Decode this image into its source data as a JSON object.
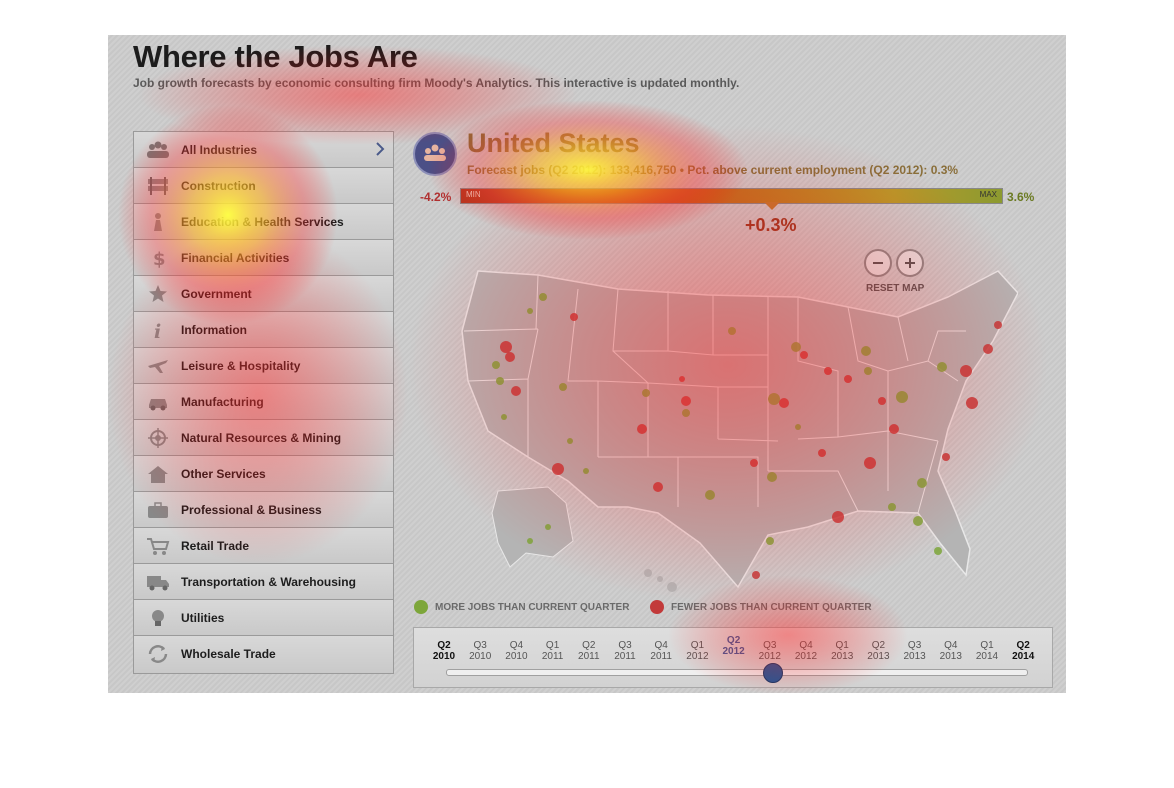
{
  "page": {
    "title": "Where the Jobs Are",
    "subtitle": "Job growth forecasts by economic consulting firm Moody's Analytics. This interactive is updated monthly."
  },
  "industries": [
    {
      "label": "All Industries",
      "icon": "people-icon"
    },
    {
      "label": "Construction",
      "icon": "barrier-icon"
    },
    {
      "label": "Education & Health Services",
      "icon": "education-icon"
    },
    {
      "label": "Financial Activities",
      "icon": "dollar-icon"
    },
    {
      "label": "Government",
      "icon": "star-seal-icon"
    },
    {
      "label": "Information",
      "icon": "info-icon"
    },
    {
      "label": "Leisure & Hospitality",
      "icon": "airplane-icon"
    },
    {
      "label": "Manufacturing",
      "icon": "car-icon"
    },
    {
      "label": "Natural Resources & Mining",
      "icon": "target-icon"
    },
    {
      "label": "Other Services",
      "icon": "house-icon"
    },
    {
      "label": "Professional & Business",
      "icon": "briefcase-icon"
    },
    {
      "label": "Retail Trade",
      "icon": "cart-icon"
    },
    {
      "label": "Transportation & Warehousing",
      "icon": "truck-icon"
    },
    {
      "label": "Utilities",
      "icon": "lightbulb-icon"
    },
    {
      "label": "Wholesale Trade",
      "icon": "recycle-icon"
    }
  ],
  "region": {
    "name": "United States",
    "forecast_line": "Forecast jobs (Q2 2012): 133,416,750 • Pct. above current employment (Q2 2012): 0.3%"
  },
  "scale": {
    "min_value": "-4.2%",
    "max_value": "3.6%",
    "min_label": "MIN",
    "max_label": "MAX",
    "current_value": "+0.3%"
  },
  "map_controls": {
    "zoom_out": "−",
    "zoom_in": "+",
    "reset_label": "RESET MAP"
  },
  "legend": {
    "more": "MORE JOBS THAN CURRENT QUARTER",
    "fewer": "FEWER JOBS THAN CURRENT QUARTER",
    "more_color": "#7da63a",
    "fewer_color": "#c23a3a"
  },
  "timeline": {
    "quarters": [
      {
        "q": "Q2",
        "y": "2010",
        "style": "bold"
      },
      {
        "q": "Q3",
        "y": "2010",
        "style": "normal"
      },
      {
        "q": "Q4",
        "y": "2010",
        "style": "normal"
      },
      {
        "q": "Q1",
        "y": "2011",
        "style": "normal"
      },
      {
        "q": "Q2",
        "y": "2011",
        "style": "normal"
      },
      {
        "q": "Q3",
        "y": "2011",
        "style": "normal"
      },
      {
        "q": "Q4",
        "y": "2011",
        "style": "normal"
      },
      {
        "q": "Q1",
        "y": "2012",
        "style": "normal"
      },
      {
        "q": "Q2",
        "y": "2012",
        "style": "selected"
      },
      {
        "q": "Q3",
        "y": "2012",
        "style": "normal"
      },
      {
        "q": "Q4",
        "y": "2012",
        "style": "normal"
      },
      {
        "q": "Q1",
        "y": "2013",
        "style": "normal"
      },
      {
        "q": "Q2",
        "y": "2013",
        "style": "normal"
      },
      {
        "q": "Q3",
        "y": "2013",
        "style": "normal"
      },
      {
        "q": "Q4",
        "y": "2013",
        "style": "normal"
      },
      {
        "q": "Q1",
        "y": "2014",
        "style": "normal"
      },
      {
        "q": "Q2",
        "y": "2014",
        "style": "bold"
      }
    ],
    "selected": "Q2 2012"
  }
}
